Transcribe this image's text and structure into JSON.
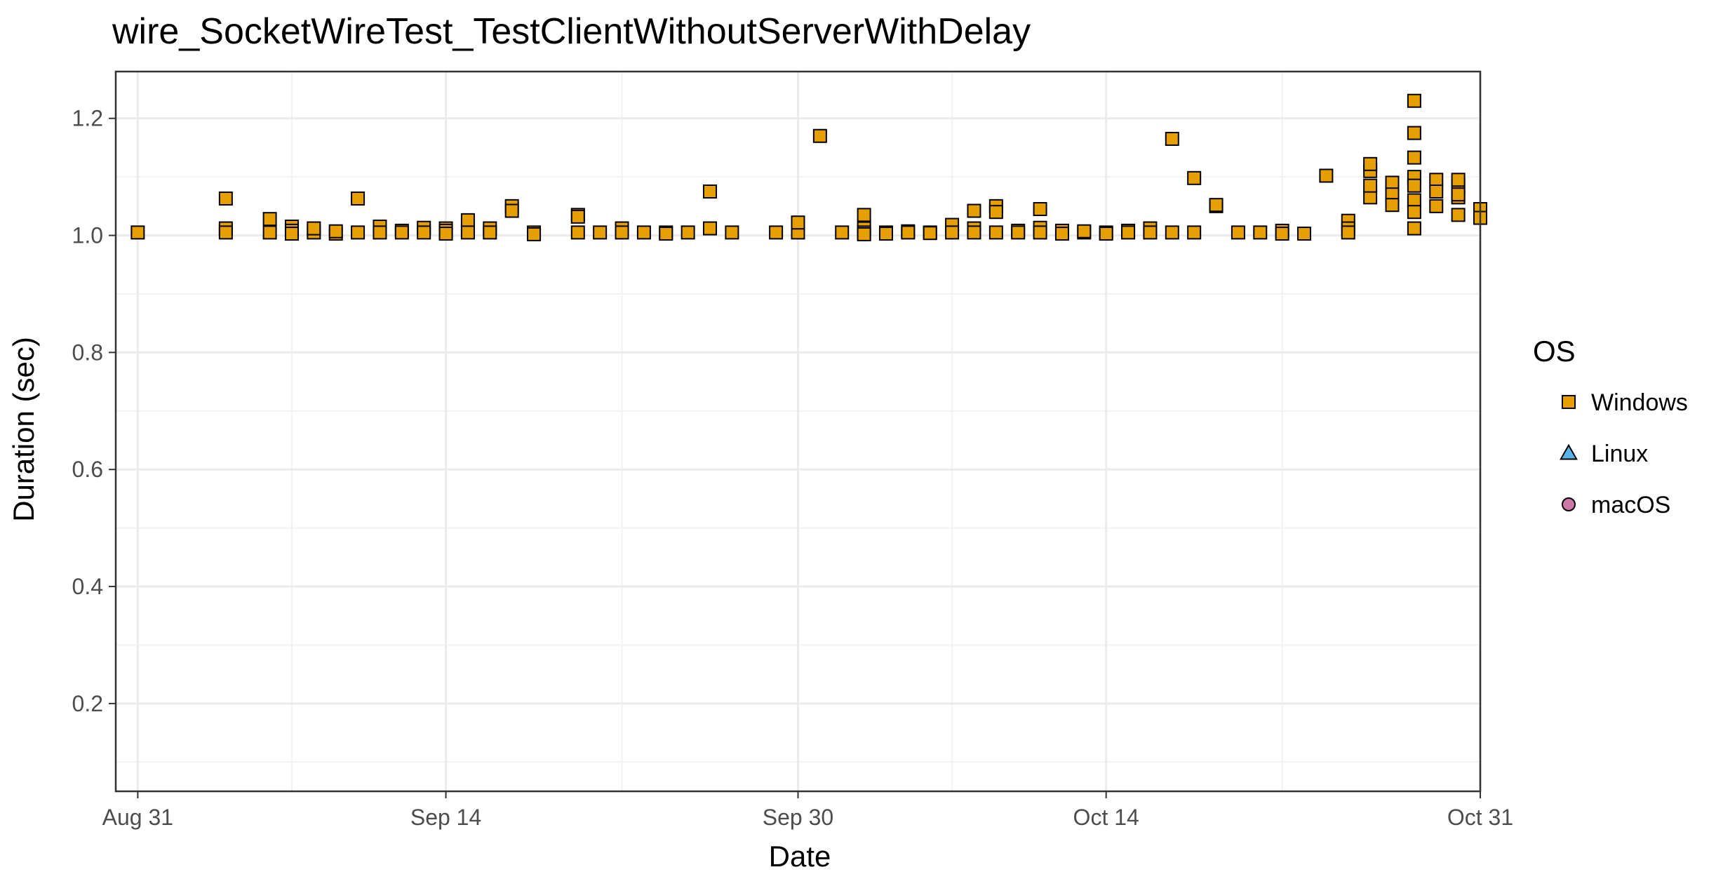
{
  "chart_data": {
    "type": "scatter",
    "title": "wire_SocketWireTest_TestClientWithoutServerWithDelay",
    "xlabel": "Date",
    "ylabel": "Duration (sec)",
    "x_type": "date",
    "xlim": [
      "2023-08-30",
      "2023-10-31"
    ],
    "ylim": [
      0.05,
      1.28
    ],
    "x_ticks": [
      {
        "date": "2023-08-31",
        "label": "Aug 31"
      },
      {
        "date": "2023-09-14",
        "label": "Sep 14"
      },
      {
        "date": "2023-09-30",
        "label": "Sep 30"
      },
      {
        "date": "2023-10-14",
        "label": "Oct 14"
      },
      {
        "date": "2023-10-31",
        "label": "Oct 31"
      }
    ],
    "x_minor_ticks": [
      "2023-09-07",
      "2023-09-22",
      "2023-10-07",
      "2023-10-22"
    ],
    "y_ticks": [
      0.2,
      0.4,
      0.6,
      0.8,
      1.0,
      1.2
    ],
    "y_tick_labels": [
      "0.2",
      "0.4",
      "0.6",
      "0.8",
      "1.0",
      "1.2"
    ],
    "y_minor_ticks": [
      0.1,
      0.3,
      0.5,
      0.7,
      0.9,
      1.1
    ],
    "grid": true,
    "legend": {
      "title": "OS",
      "position": "right"
    },
    "series": [
      {
        "name": "Windows",
        "marker": "square",
        "color": "#E69F00",
        "points": [
          [
            "2023-08-31",
            1.005
          ],
          [
            "2023-09-04",
            1.063
          ],
          [
            "2023-09-04",
            1.012
          ],
          [
            "2023-09-04",
            1.005
          ],
          [
            "2023-09-06",
            1.028
          ],
          [
            "2023-09-06",
            1.005
          ],
          [
            "2023-09-07",
            1.015
          ],
          [
            "2023-09-07",
            1.008
          ],
          [
            "2023-09-07",
            1.003
          ],
          [
            "2023-09-08",
            1.005
          ],
          [
            "2023-09-08",
            1.012
          ],
          [
            "2023-09-09",
            1.003
          ],
          [
            "2023-09-09",
            1.007
          ],
          [
            "2023-09-10",
            1.063
          ],
          [
            "2023-09-10",
            1.005
          ],
          [
            "2023-09-11",
            1.015
          ],
          [
            "2023-09-11",
            1.005
          ],
          [
            "2023-09-12",
            1.008
          ],
          [
            "2023-09-12",
            1.005
          ],
          [
            "2023-09-13",
            1.013
          ],
          [
            "2023-09-13",
            1.005
          ],
          [
            "2023-09-14",
            1.012
          ],
          [
            "2023-09-14",
            1.008
          ],
          [
            "2023-09-14",
            1.003
          ],
          [
            "2023-09-15",
            1.008
          ],
          [
            "2023-09-15",
            1.026
          ],
          [
            "2023-09-15",
            1.005
          ],
          [
            "2023-09-16",
            1.012
          ],
          [
            "2023-09-16",
            1.005
          ],
          [
            "2023-09-17",
            1.05
          ],
          [
            "2023-09-17",
            1.042
          ],
          [
            "2023-09-18",
            1.005
          ],
          [
            "2023-09-18",
            1.002
          ],
          [
            "2023-09-20",
            1.035
          ],
          [
            "2023-09-20",
            1.032
          ],
          [
            "2023-09-20",
            1.005
          ],
          [
            "2023-09-21",
            1.005
          ],
          [
            "2023-09-22",
            1.012
          ],
          [
            "2023-09-22",
            1.005
          ],
          [
            "2023-09-23",
            1.005
          ],
          [
            "2023-09-24",
            1.005
          ],
          [
            "2023-09-24",
            1.003
          ],
          [
            "2023-09-25",
            1.005
          ],
          [
            "2023-09-26",
            1.075
          ],
          [
            "2023-09-26",
            1.012
          ],
          [
            "2023-09-27",
            1.005
          ],
          [
            "2023-09-29",
            1.005
          ],
          [
            "2023-09-30",
            1.005
          ],
          [
            "2023-09-30",
            1.022
          ],
          [
            "2023-10-01",
            1.17
          ],
          [
            "2023-10-02",
            1.005
          ],
          [
            "2023-10-03",
            1.035
          ],
          [
            "2023-10-03",
            1.012
          ],
          [
            "2023-10-03",
            1.005
          ],
          [
            "2023-10-03",
            1.002
          ],
          [
            "2023-10-04",
            1.005
          ],
          [
            "2023-10-04",
            1.003
          ],
          [
            "2023-10-05",
            1.007
          ],
          [
            "2023-10-05",
            1.005
          ],
          [
            "2023-10-06",
            1.005
          ],
          [
            "2023-10-06",
            1.004
          ],
          [
            "2023-10-07",
            1.018
          ],
          [
            "2023-10-07",
            1.005
          ],
          [
            "2023-10-08",
            1.042
          ],
          [
            "2023-10-08",
            1.012
          ],
          [
            "2023-10-08",
            1.005
          ],
          [
            "2023-10-09",
            1.05
          ],
          [
            "2023-10-09",
            1.04
          ],
          [
            "2023-10-09",
            1.005
          ],
          [
            "2023-10-10",
            1.008
          ],
          [
            "2023-10-10",
            1.005
          ],
          [
            "2023-10-11",
            1.013
          ],
          [
            "2023-10-11",
            1.045
          ],
          [
            "2023-10-11",
            1.005
          ],
          [
            "2023-10-12",
            1.008
          ],
          [
            "2023-10-12",
            1.003
          ],
          [
            "2023-10-13",
            1.005
          ],
          [
            "2023-10-13",
            1.007
          ],
          [
            "2023-10-14",
            1.005
          ],
          [
            "2023-10-14",
            1.003
          ],
          [
            "2023-10-15",
            1.008
          ],
          [
            "2023-10-15",
            1.005
          ],
          [
            "2023-10-16",
            1.012
          ],
          [
            "2023-10-16",
            1.005
          ],
          [
            "2023-10-17",
            1.165
          ],
          [
            "2023-10-17",
            1.005
          ],
          [
            "2023-10-18",
            1.098
          ],
          [
            "2023-10-18",
            1.005
          ],
          [
            "2023-10-19",
            1.05
          ],
          [
            "2023-10-19",
            1.052
          ],
          [
            "2023-10-20",
            1.005
          ],
          [
            "2023-10-21",
            1.005
          ],
          [
            "2023-10-22",
            1.008
          ],
          [
            "2023-10-22",
            1.003
          ],
          [
            "2023-10-23",
            1.003
          ],
          [
            "2023-10-24",
            1.102
          ],
          [
            "2023-10-25",
            1.025
          ],
          [
            "2023-10-25",
            1.012
          ],
          [
            "2023-10-25",
            1.005
          ],
          [
            "2023-10-26",
            1.11
          ],
          [
            "2023-10-26",
            1.122
          ],
          [
            "2023-10-26",
            1.065
          ],
          [
            "2023-10-26",
            1.085
          ],
          [
            "2023-10-27",
            1.09
          ],
          [
            "2023-10-27",
            1.07
          ],
          [
            "2023-10-27",
            1.052
          ],
          [
            "2023-10-28",
            1.23
          ],
          [
            "2023-10-28",
            1.175
          ],
          [
            "2023-10-28",
            1.133
          ],
          [
            "2023-10-28",
            1.1
          ],
          [
            "2023-10-28",
            1.085
          ],
          [
            "2023-10-28",
            1.06
          ],
          [
            "2023-10-28",
            1.04
          ],
          [
            "2023-10-28",
            1.012
          ],
          [
            "2023-10-29",
            1.095
          ],
          [
            "2023-10-29",
            1.075
          ],
          [
            "2023-10-29",
            1.05
          ],
          [
            "2023-10-30",
            1.085
          ],
          [
            "2023-10-30",
            1.065
          ],
          [
            "2023-10-30",
            1.035
          ],
          [
            "2023-10-30",
            1.095
          ],
          [
            "2023-10-30",
            1.07
          ],
          [
            "2023-10-31",
            1.045
          ],
          [
            "2023-10-31",
            1.03
          ]
        ]
      },
      {
        "name": "Linux",
        "marker": "triangle",
        "color": "#56B4E9",
        "points": []
      },
      {
        "name": "macOS",
        "marker": "circle",
        "color": "#CC79A7",
        "points": []
      }
    ]
  }
}
